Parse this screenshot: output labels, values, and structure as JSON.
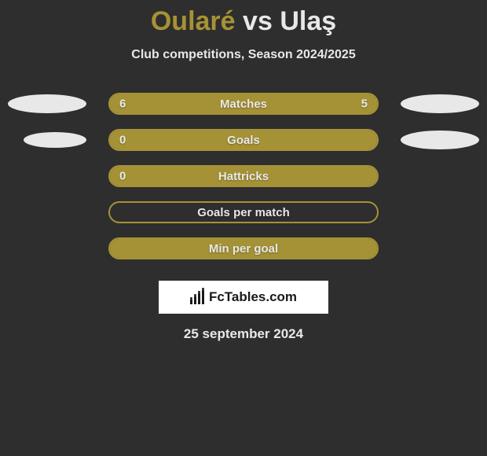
{
  "title": {
    "player1": "Oularé",
    "vs": "vs",
    "player2": "Ulaş"
  },
  "subtitle": "Club competitions, Season 2024/2025",
  "rows": [
    {
      "label": "Matches",
      "left_val": "6",
      "right_val": "5",
      "left_fill_pct": 100,
      "right_fill_pct": 100,
      "ellipse_left": true,
      "ellipse_right": true,
      "ellipse_right_small": false
    },
    {
      "label": "Goals",
      "left_val": "0",
      "right_val": "",
      "left_fill_pct": 100,
      "right_fill_pct": 100,
      "ellipse_left": true,
      "ellipse_right": true,
      "ellipse_left_small": true,
      "ellipse_right_small": false
    },
    {
      "label": "Hattricks",
      "left_val": "0",
      "right_val": "",
      "left_fill_pct": 100,
      "right_fill_pct": 100,
      "ellipse_left": false,
      "ellipse_right": false
    },
    {
      "label": "Goals per match",
      "left_val": "",
      "right_val": "",
      "left_fill_pct": 0,
      "right_fill_pct": 0,
      "ellipse_left": false,
      "ellipse_right": false
    },
    {
      "label": "Min per goal",
      "left_val": "",
      "right_val": "",
      "left_fill_pct": 100,
      "right_fill_pct": 100,
      "ellipse_left": false,
      "ellipse_right": false
    }
  ],
  "logo": "FcTables.com",
  "date": "25 september 2024",
  "colors": {
    "bg": "#2e2e2e",
    "accent": "#a69236",
    "text": "#e8e8e8",
    "white": "#ffffff"
  }
}
